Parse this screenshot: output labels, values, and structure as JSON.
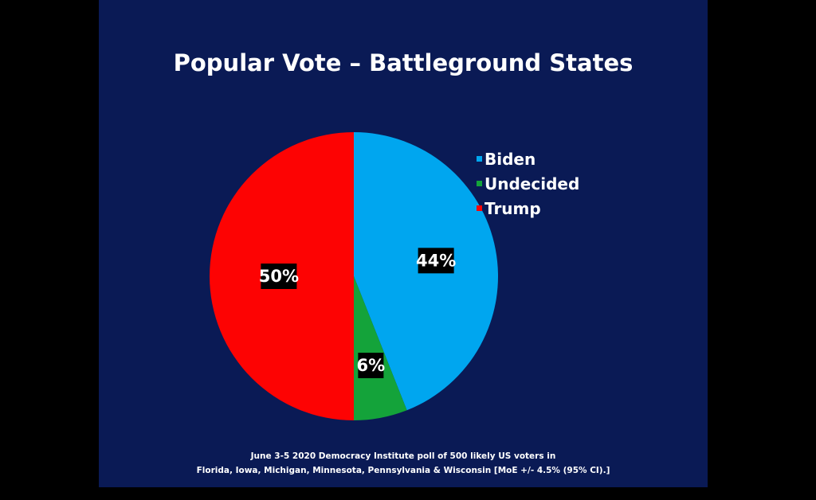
{
  "chart_data": {
    "type": "pie",
    "title": "Popular Vote – Battleground States",
    "categories": [
      "Biden",
      "Undecided",
      "Trump"
    ],
    "values": [
      44,
      6,
      50
    ],
    "value_labels": [
      "44%",
      "6%",
      "50%"
    ],
    "colors": [
      "#00a6ef",
      "#14a33a",
      "#fd0303"
    ],
    "legend_position": "right",
    "note_lines": [
      "June 3-5 2020 Democracy Institute poll of 500 likely US voters in",
      "Florida, Iowa, Michigan, Minnesota, Pennsylvania & Wisconsin [MoE +/- 4.5% (95% CI).]"
    ]
  },
  "colors": {
    "page_background": "#000000",
    "slide_background": "#0a1a55",
    "label_box": "#000000",
    "text": "#ffffff"
  }
}
